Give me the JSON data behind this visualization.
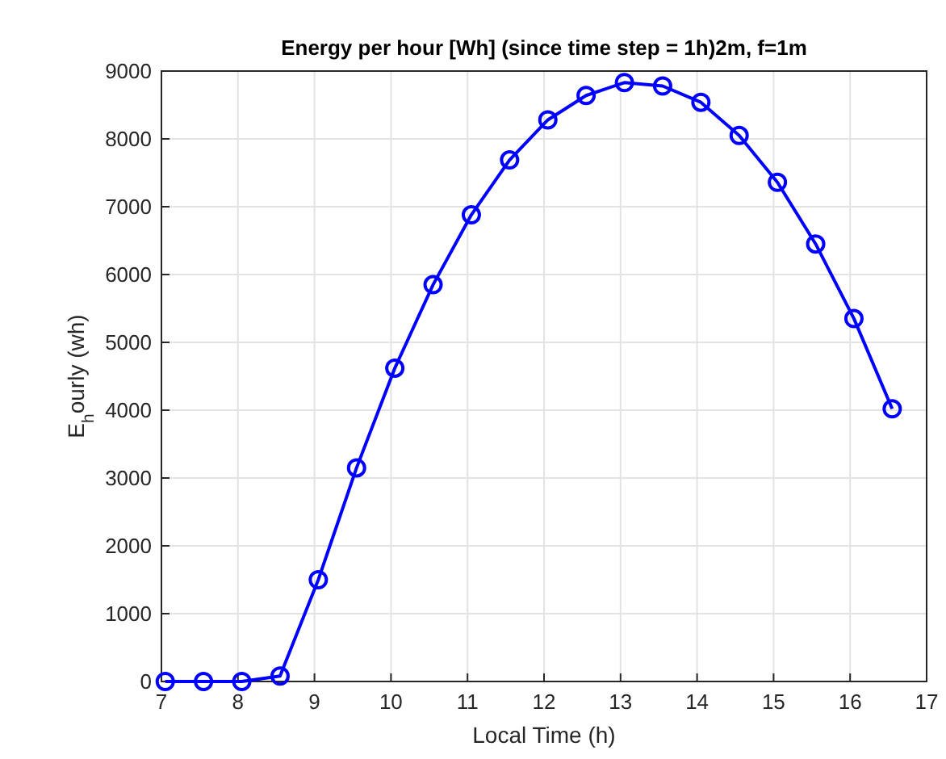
{
  "chart_data": {
    "type": "line",
    "title": "Energy per hour [Wh] (since time step = 1h)2m, f=1m",
    "xlabel": "Local Time (h)",
    "ylabel": "E$_{h}$ourly (wh)",
    "x": [
      7.05,
      7.55,
      8.05,
      8.55,
      9.05,
      9.55,
      10.05,
      10.55,
      11.05,
      11.55,
      12.05,
      12.55,
      13.05,
      13.55,
      14.05,
      14.55,
      15.05,
      15.55,
      16.05,
      16.55
    ],
    "series": [
      {
        "color": "#0000ff",
        "values": [
          0,
          0,
          0,
          80,
          1500,
          3150,
          4620,
          5850,
          6880,
          7690,
          8280,
          8640,
          8830,
          8780,
          8540,
          8050,
          7360,
          6450,
          5350,
          4020
        ]
      }
    ],
    "xlim": [
      7,
      17
    ],
    "ylim": [
      0,
      9000
    ],
    "xticks": [
      7,
      8,
      9,
      10,
      11,
      12,
      13,
      14,
      15,
      16,
      17
    ],
    "yticks": [
      0,
      1000,
      2000,
      3000,
      4000,
      5000,
      6000,
      7000,
      8000,
      9000
    ],
    "grid": true,
    "marker": "circle",
    "line_style": "solid"
  }
}
